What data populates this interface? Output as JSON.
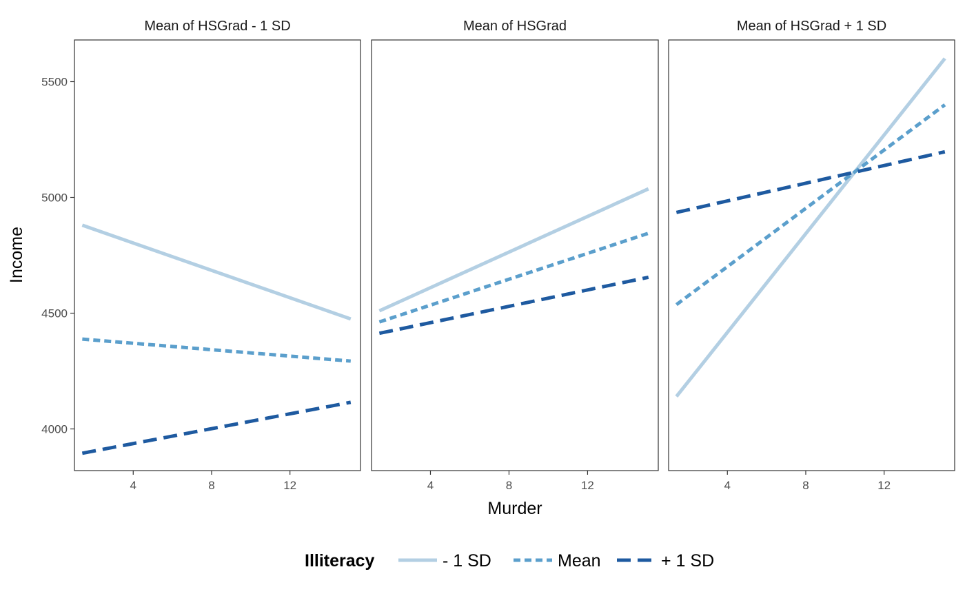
{
  "chart_data": {
    "type": "line",
    "xlabel": "Murder",
    "ylabel": "Income",
    "xlim": [
      1.0,
      15.6
    ],
    "ylim": [
      3820,
      5680
    ],
    "x_ticks": [
      4,
      8,
      12
    ],
    "y_ticks": [
      4000,
      4500,
      5000,
      5500
    ],
    "grid": false,
    "legend": {
      "title": "Illiteracy",
      "position": "bottom",
      "entries": [
        {
          "name": "- 1 SD",
          "color": "#b3cfe3",
          "dash": "solid"
        },
        {
          "name": "Mean",
          "color": "#5b9fcc",
          "dash": "dotted"
        },
        {
          "name": "+ 1 SD",
          "color": "#1e5aa0",
          "dash": "dashed"
        }
      ]
    },
    "panels": [
      {
        "title": "Mean of HSGrad - 1 SD",
        "series": [
          {
            "name": "- 1 SD",
            "x": [
              1.4,
              15.1
            ],
            "y": [
              4880,
              4475
            ]
          },
          {
            "name": "Mean",
            "x": [
              1.4,
              15.1
            ],
            "y": [
              4388,
              4293
            ]
          },
          {
            "name": "+ 1 SD",
            "x": [
              1.4,
              15.1
            ],
            "y": [
              3895,
              4115
            ]
          }
        ]
      },
      {
        "title": "Mean of HSGrad",
        "series": [
          {
            "name": "- 1 SD",
            "x": [
              1.4,
              15.1
            ],
            "y": [
              4510,
              5037
            ]
          },
          {
            "name": "Mean",
            "x": [
              1.4,
              15.1
            ],
            "y": [
              4462,
              4845
            ]
          },
          {
            "name": "+ 1 SD",
            "x": [
              1.4,
              15.1
            ],
            "y": [
              4413,
              4655
            ]
          }
        ]
      },
      {
        "title": "Mean of HSGrad + 1 SD",
        "series": [
          {
            "name": "- 1 SD",
            "x": [
              1.4,
              15.1
            ],
            "y": [
              4140,
              5600
            ]
          },
          {
            "name": "Mean",
            "x": [
              1.4,
              15.1
            ],
            "y": [
              4537,
              5400
            ]
          },
          {
            "name": "+ 1 SD",
            "x": [
              1.4,
              15.1
            ],
            "y": [
              4935,
              5197
            ]
          }
        ]
      }
    ]
  }
}
